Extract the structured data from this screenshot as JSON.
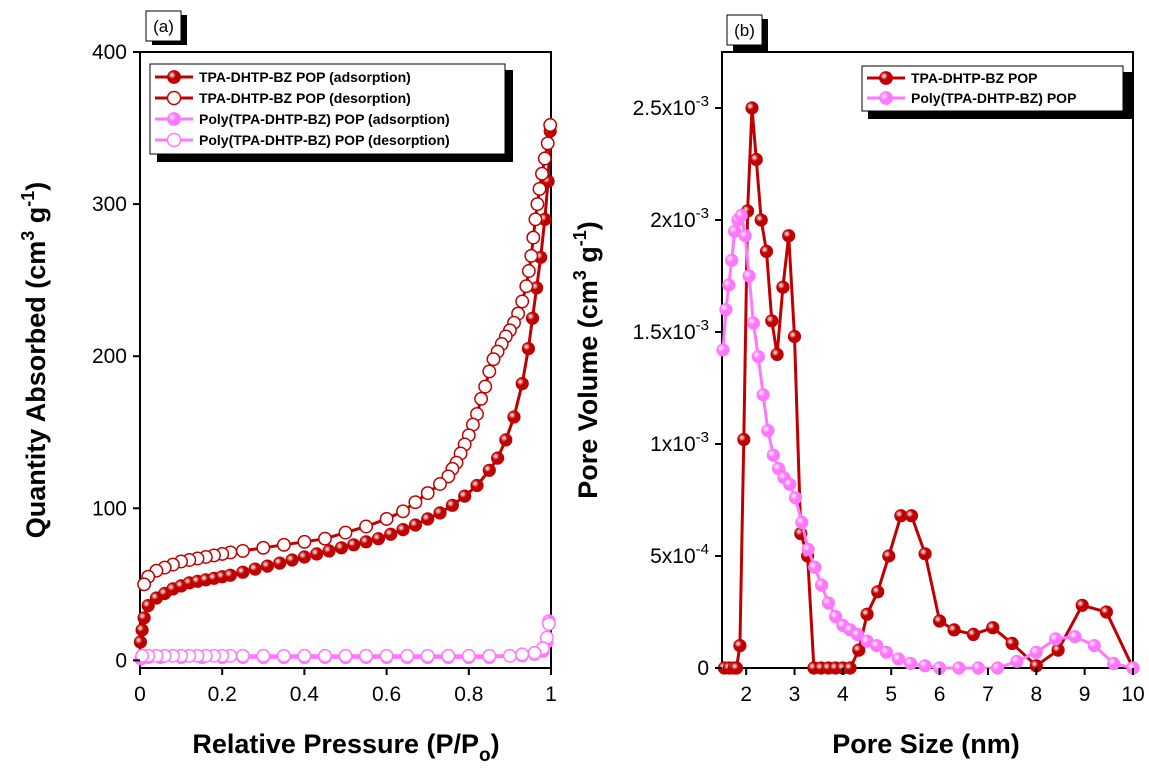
{
  "chart_data": [
    {
      "panel_label": "(a)",
      "type": "line",
      "xlabel": "Relative Pressure (P/P",
      "xlabel_sub": "o",
      "xlabel_end": ")",
      "ylabel": "Quantity Absorbed (cm",
      "ylabel_sup1": "3",
      "ylabel_mid": " g",
      "ylabel_sup2": "-1",
      "ylabel_end": ")",
      "xlim": [
        0,
        1
      ],
      "ylim": [
        -5,
        400
      ],
      "x_ticks": [
        0,
        0.2,
        0.4,
        0.6,
        0.8,
        1
      ],
      "x_tick_labels": [
        "0",
        "0.2",
        "0.4",
        "0.6",
        "0.8",
        "1"
      ],
      "y_ticks": [
        0,
        100,
        200,
        300,
        400
      ],
      "y_tick_labels": [
        "0",
        "100",
        "200",
        "300",
        "400"
      ],
      "grid": false,
      "legend_position": "top",
      "series": [
        {
          "name": "TPA-DHTP-BZ POP (adsorption)",
          "color": "#c00000",
          "marker": "filled",
          "x": [
            0.001,
            0.005,
            0.01,
            0.02,
            0.04,
            0.06,
            0.08,
            0.1,
            0.12,
            0.14,
            0.16,
            0.18,
            0.2,
            0.22,
            0.25,
            0.28,
            0.31,
            0.34,
            0.37,
            0.4,
            0.43,
            0.46,
            0.49,
            0.52,
            0.55,
            0.58,
            0.61,
            0.64,
            0.67,
            0.7,
            0.73,
            0.76,
            0.79,
            0.82,
            0.85,
            0.87,
            0.89,
            0.91,
            0.93,
            0.945,
            0.955,
            0.965,
            0.975,
            0.985,
            0.993,
            0.998
          ],
          "y": [
            12,
            20,
            28,
            36,
            41,
            44,
            47,
            49,
            51,
            52,
            53,
            54,
            55,
            56,
            58,
            60,
            62,
            64,
            66,
            68,
            70,
            72,
            74,
            76,
            78,
            80,
            83,
            86,
            89,
            93,
            97,
            102,
            108,
            115,
            125,
            133,
            145,
            160,
            182,
            205,
            225,
            245,
            265,
            290,
            315,
            348
          ]
        },
        {
          "name": "TPA-DHTP-BZ POP (desorption)",
          "color": "#c00000",
          "marker": "open",
          "x": [
            0.998,
            0.992,
            0.985,
            0.978,
            0.972,
            0.967,
            0.962,
            0.957,
            0.952,
            0.946,
            0.94,
            0.93,
            0.92,
            0.91,
            0.9,
            0.89,
            0.88,
            0.87,
            0.86,
            0.85,
            0.84,
            0.83,
            0.82,
            0.81,
            0.8,
            0.79,
            0.78,
            0.77,
            0.76,
            0.75,
            0.73,
            0.7,
            0.67,
            0.64,
            0.6,
            0.55,
            0.5,
            0.45,
            0.4,
            0.35,
            0.3,
            0.25,
            0.22,
            0.2,
            0.18,
            0.16,
            0.14,
            0.12,
            0.1,
            0.08,
            0.06,
            0.04,
            0.02,
            0.01
          ],
          "y": [
            352,
            340,
            330,
            320,
            310,
            300,
            290,
            278,
            266,
            256,
            246,
            236,
            228,
            222,
            217,
            213,
            208,
            203,
            198,
            190,
            180,
            172,
            162,
            155,
            148,
            142,
            136,
            130,
            126,
            121,
            116,
            110,
            104,
            98,
            93,
            88,
            84,
            80,
            78,
            76,
            74,
            72,
            71,
            70,
            69,
            68,
            67,
            66,
            65,
            63,
            61,
            59,
            55,
            50
          ]
        },
        {
          "name": "Poly(TPA-DHTP-BZ) POP (adsorption)",
          "color": "#ff77ff",
          "marker": "filled",
          "x": [
            0.002,
            0.02,
            0.05,
            0.1,
            0.15,
            0.2,
            0.25,
            0.3,
            0.35,
            0.4,
            0.45,
            0.5,
            0.55,
            0.6,
            0.65,
            0.7,
            0.75,
            0.8,
            0.85,
            0.9,
            0.93,
            0.96,
            0.98,
            0.99,
            0.995
          ],
          "y": [
            1,
            2,
            2,
            2,
            2,
            2,
            2,
            2,
            2,
            2,
            2,
            2,
            2,
            2,
            2,
            2,
            2,
            2,
            2,
            3,
            3,
            4,
            6,
            12,
            26
          ]
        },
        {
          "name": "Poly(TPA-DHTP-BZ) POP (desorption)",
          "color": "#ff77ff",
          "marker": "open",
          "x": [
            0.995,
            0.99,
            0.98,
            0.96,
            0.93,
            0.9,
            0.85,
            0.8,
            0.75,
            0.7,
            0.65,
            0.6,
            0.55,
            0.5,
            0.45,
            0.4,
            0.35,
            0.3,
            0.25,
            0.22,
            0.2,
            0.18,
            0.16,
            0.14,
            0.12,
            0.1,
            0.08,
            0.06,
            0.04,
            0.02,
            0.005
          ],
          "y": [
            24,
            15,
            8,
            5,
            4,
            3,
            3,
            3,
            3,
            3,
            3,
            3,
            3,
            3,
            3,
            3,
            3,
            3,
            3,
            3,
            3,
            3,
            3,
            3,
            3,
            3,
            3,
            3,
            3,
            3,
            3
          ]
        }
      ]
    },
    {
      "panel_label": "(b)",
      "type": "line",
      "xlabel": "Pore Size (nm)",
      "ylabel": "Pore Volume (cm",
      "ylabel_sup1": "3",
      "ylabel_mid": " g",
      "ylabel_sup2": "-1",
      "ylabel_end": ")",
      "xlim": [
        1.5,
        10
      ],
      "ylim": [
        0,
        0.00275
      ],
      "x_ticks": [
        2,
        3,
        4,
        5,
        6,
        7,
        8,
        9,
        10
      ],
      "x_tick_labels": [
        "2",
        "3",
        "4",
        "5",
        "6",
        "7",
        "8",
        "9",
        "10"
      ],
      "y_ticks": [
        0,
        0.0005,
        0.001,
        0.0015,
        0.002,
        0.0025
      ],
      "y_tick_labels": [
        {
          "base": "0",
          "exp": ""
        },
        {
          "base": "5x10",
          "exp": "-4"
        },
        {
          "base": "1x10",
          "exp": "-3"
        },
        {
          "base": "1.5x10",
          "exp": "-3"
        },
        {
          "base": "2x10",
          "exp": "-3"
        },
        {
          "base": "2.5x10",
          "exp": "-3"
        }
      ],
      "grid": false,
      "legend_position": "top-right",
      "series": [
        {
          "name": "TPA-DHTP-BZ POP",
          "color": "#c00000",
          "marker": "filled",
          "x": [
            1.55,
            1.65,
            1.75,
            1.8,
            1.87,
            1.95,
            2.03,
            2.12,
            2.21,
            2.31,
            2.42,
            2.53,
            2.64,
            2.76,
            2.88,
            3.0,
            3.13,
            3.27,
            3.4,
            3.55,
            3.7,
            3.85,
            4.0,
            4.15,
            4.33,
            4.5,
            4.72,
            4.95,
            5.2,
            5.42,
            5.7,
            6.0,
            6.3,
            6.7,
            7.1,
            7.5,
            8.0,
            8.45,
            8.95,
            9.45,
            10.0
          ],
          "y": [
            0,
            0,
            0,
            0,
            0.0001,
            0.00102,
            0.00204,
            0.0025,
            0.00227,
            0.002,
            0.00186,
            0.00155,
            0.0014,
            0.0017,
            0.00193,
            0.00148,
            0.0006,
            0.0005,
            0,
            0,
            0,
            0,
            0,
            0,
            8e-05,
            0.00024,
            0.00034,
            0.0005,
            0.00068,
            0.00068,
            0.00051,
            0.00021,
            0.00017,
            0.00015,
            0.00018,
            0.00011,
            1e-05,
            8e-05,
            0.00028,
            0.00025,
            0
          ]
        },
        {
          "name": "Poly(TPA-DHTP-BZ) POP",
          "color": "#ff77ff",
          "marker": "filled",
          "x": [
            1.52,
            1.58,
            1.64,
            1.7,
            1.76,
            1.83,
            1.9,
            1.98,
            2.06,
            2.15,
            2.25,
            2.35,
            2.45,
            2.56,
            2.67,
            2.78,
            2.9,
            3.02,
            3.15,
            3.28,
            3.42,
            3.56,
            3.7,
            3.85,
            4.0,
            4.15,
            4.3,
            4.5,
            4.7,
            4.9,
            5.15,
            5.4,
            5.7,
            6.0,
            6.4,
            6.8,
            7.2,
            7.6,
            8.0,
            8.4,
            8.8,
            9.2,
            9.6,
            10.0
          ],
          "y": [
            0.00142,
            0.0016,
            0.00171,
            0.00182,
            0.00195,
            0.002,
            0.00202,
            0.00193,
            0.00175,
            0.00154,
            0.00139,
            0.00122,
            0.00106,
            0.00095,
            0.00089,
            0.00085,
            0.00082,
            0.00076,
            0.00065,
            0.00053,
            0.00045,
            0.00037,
            0.00029,
            0.00023,
            0.00019,
            0.00017,
            0.00015,
            0.00012,
            0.0001,
            7e-05,
            4e-05,
            2e-05,
            1e-05,
            0,
            0,
            0,
            0,
            3e-05,
            7e-05,
            0.00013,
            0.00014,
            0.0001,
            2e-05,
            0
          ]
        }
      ]
    }
  ]
}
